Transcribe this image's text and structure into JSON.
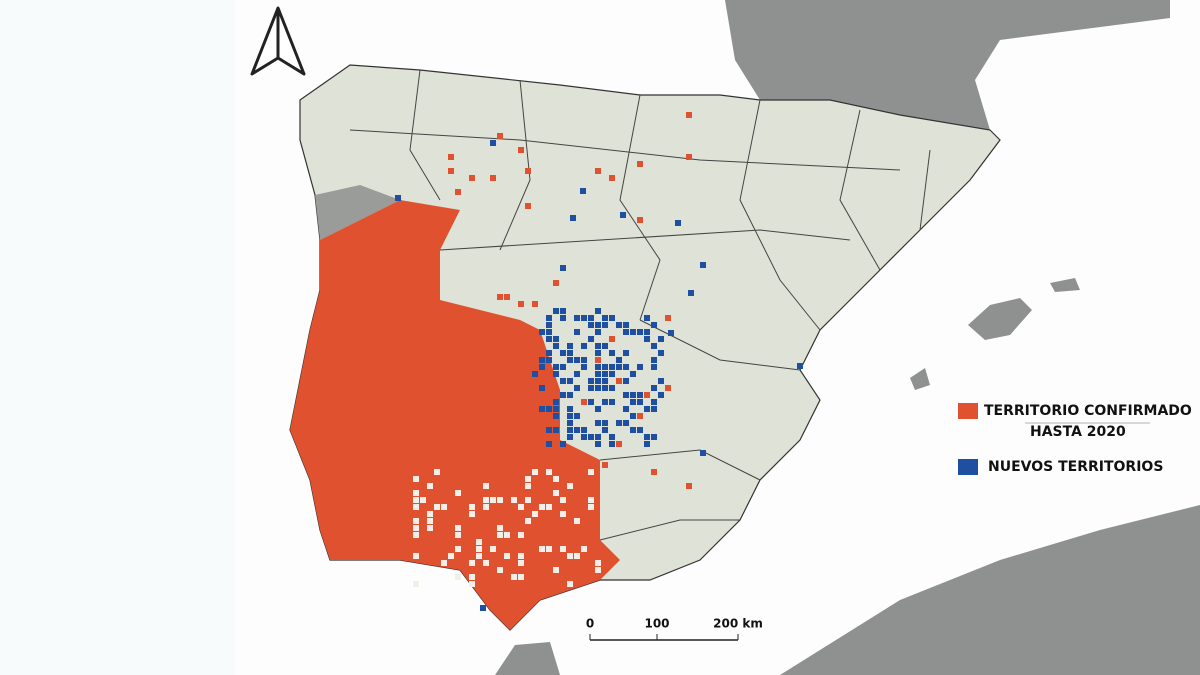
{
  "legend": {
    "items": [
      {
        "label_lines": [
          "TERRITORIO CONFIRMADO",
          "HASTA 2020"
        ],
        "color": "#e0522f"
      },
      {
        "label_lines": [
          "NUEVOS TERRITORIOS"
        ],
        "color": "#1f4fa0"
      }
    ]
  },
  "scale_bar": {
    "labels": [
      "0",
      "100",
      "200 km"
    ]
  }
}
